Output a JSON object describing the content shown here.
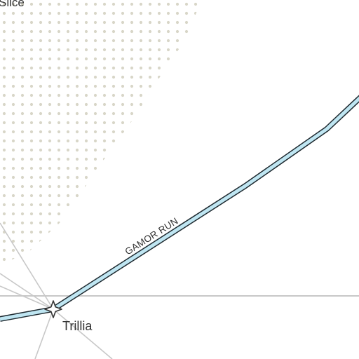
{
  "map": {
    "colors": {
      "background": "#ffffff",
      "dot_region": "#d8d6c8",
      "route_fill": "#bfe6f2",
      "route_outline": "#1f2a30",
      "grid_line": "#c8c8c8",
      "text": "#333333"
    },
    "region_label": "Slice",
    "route": {
      "name": "GAMOR RUN"
    },
    "places": [
      {
        "name": "Trillia",
        "marker": "four-point-star-icon"
      }
    ],
    "edge_label_fragment": "..."
  }
}
